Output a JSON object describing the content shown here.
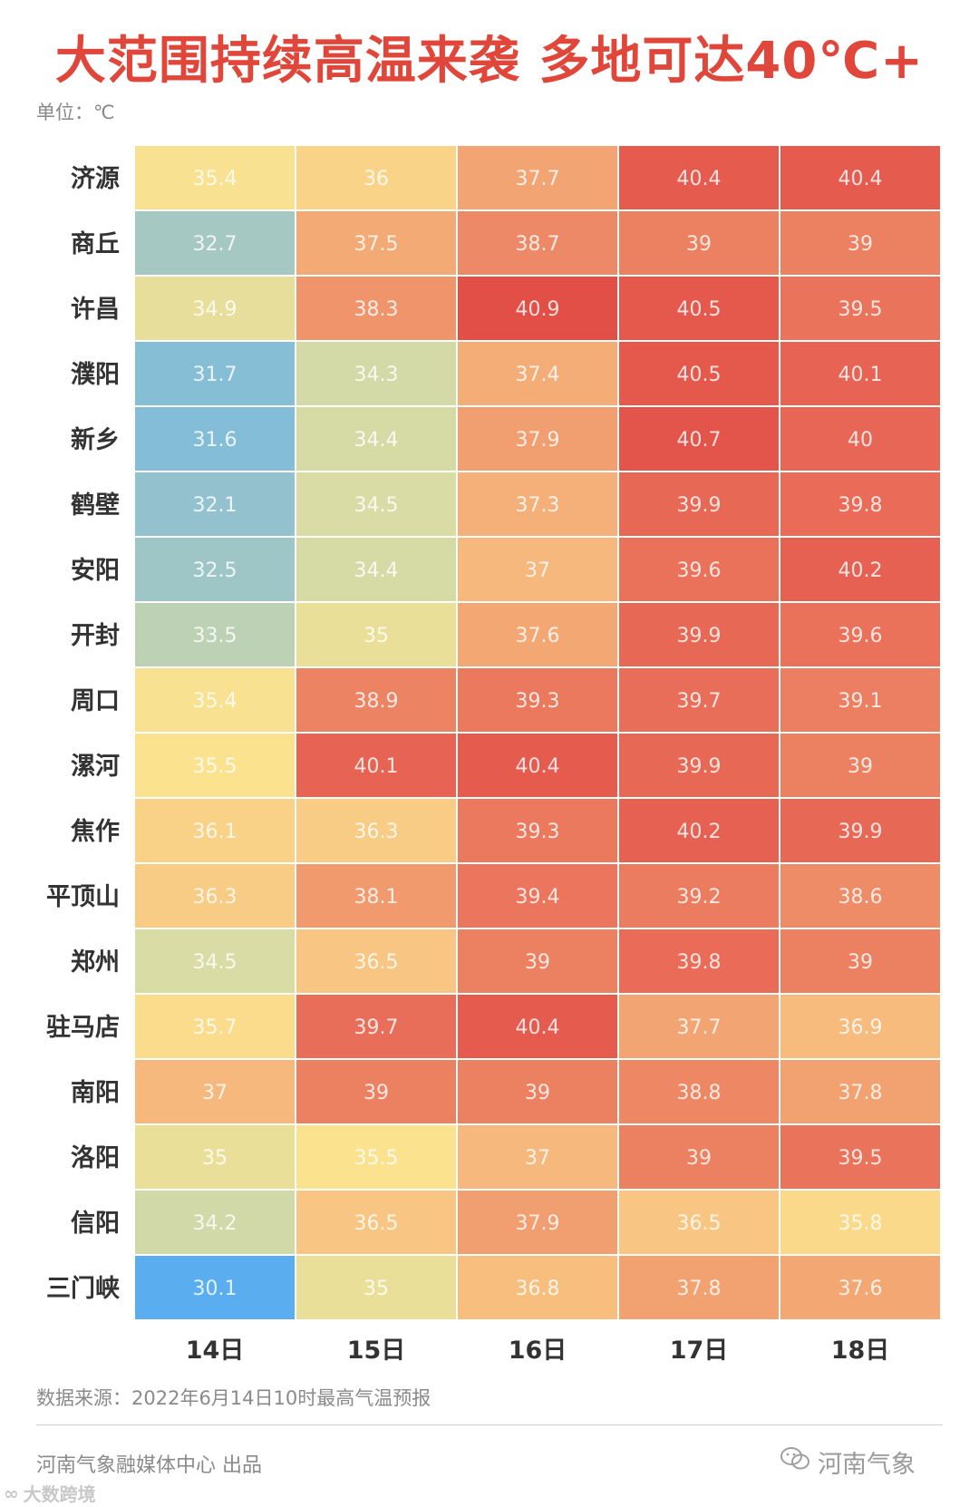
{
  "title": "大范围持续高温来袭 多地可达40℃+",
  "unit_label": "单位：℃",
  "footer": {
    "source": "数据来源：2022年6月14日10时最高气温预报",
    "producer": "河南气象融媒体中心 出品",
    "account_name": "河南气象",
    "account_icon": "wechat-icon",
    "watermark": "大数跨境"
  },
  "chart_data": {
    "type": "heatmap",
    "title": "大范围持续高温来袭 多地可达40℃+",
    "unit": "℃",
    "columns": [
      "14日",
      "15日",
      "16日",
      "17日",
      "18日"
    ],
    "rows": [
      "济源",
      "商丘",
      "许昌",
      "濮阳",
      "新乡",
      "鹤壁",
      "安阳",
      "开封",
      "周口",
      "漯河",
      "焦作",
      "平顶山",
      "郑州",
      "驻马店",
      "南阳",
      "洛阳",
      "信阳",
      "三门峡"
    ],
    "values": [
      [
        "35.4",
        "36",
        "37.7",
        "40.4",
        "40.4"
      ],
      [
        "32.7",
        "37.5",
        "38.7",
        "39",
        "39"
      ],
      [
        "34.9",
        "38.3",
        "40.9",
        "40.5",
        "39.5"
      ],
      [
        "31.7",
        "34.3",
        "37.4",
        "40.5",
        "40.1"
      ],
      [
        "31.6",
        "34.4",
        "37.9",
        "40.7",
        "40"
      ],
      [
        "32.1",
        "34.5",
        "37.3",
        "39.9",
        "39.8"
      ],
      [
        "32.5",
        "34.4",
        "37",
        "39.6",
        "40.2"
      ],
      [
        "33.5",
        "35",
        "37.6",
        "39.9",
        "39.6"
      ],
      [
        "35.4",
        "38.9",
        "39.3",
        "39.7",
        "39.1"
      ],
      [
        "35.5",
        "40.1",
        "40.4",
        "39.9",
        "39"
      ],
      [
        "36.1",
        "36.3",
        "39.3",
        "40.2",
        "39.9"
      ],
      [
        "36.3",
        "38.1",
        "39.4",
        "39.2",
        "38.6"
      ],
      [
        "34.5",
        "36.5",
        "39",
        "39.8",
        "39"
      ],
      [
        "35.7",
        "39.7",
        "40.4",
        "37.7",
        "36.9"
      ],
      [
        "37",
        "39",
        "39",
        "38.8",
        "37.8"
      ],
      [
        "35",
        "35.5",
        "37",
        "39",
        "39.5"
      ],
      [
        "34.2",
        "36.5",
        "37.9",
        "36.5",
        "35.8"
      ],
      [
        "30.1",
        "35",
        "36.8",
        "37.8",
        "37.6"
      ]
    ],
    "color_scale": {
      "min": 30.1,
      "max": 40.9,
      "stops": [
        {
          "value": 30.1,
          "color": "#5aaef0"
        },
        {
          "value": 31.7,
          "color": "#86bed6"
        },
        {
          "value": 33.0,
          "color": "#afcbbc"
        },
        {
          "value": 34.5,
          "color": "#d9dca4"
        },
        {
          "value": 35.5,
          "color": "#fbe28e"
        },
        {
          "value": 37.0,
          "color": "#f6b87c"
        },
        {
          "value": 38.5,
          "color": "#ee8f68"
        },
        {
          "value": 39.8,
          "color": "#e96b58"
        },
        {
          "value": 40.9,
          "color": "#e24f47"
        }
      ]
    }
  }
}
